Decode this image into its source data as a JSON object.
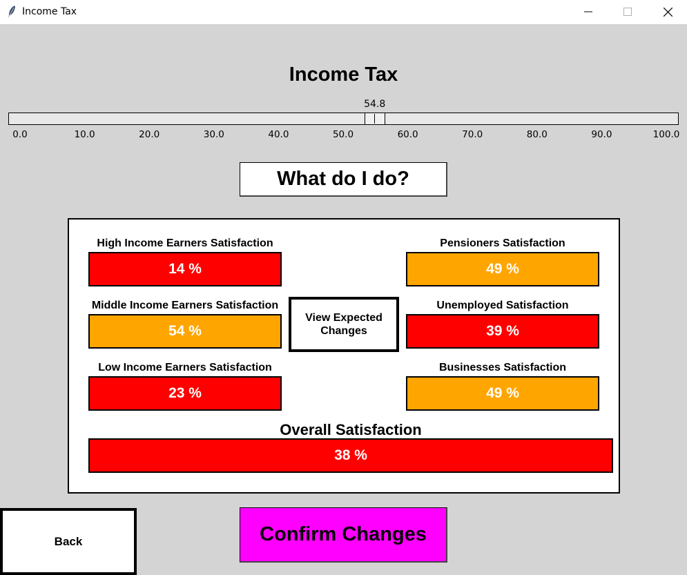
{
  "window": {
    "title": "Income Tax",
    "icon": "feather-icon",
    "controls": [
      "minimize-icon",
      "maximize-icon",
      "close-icon"
    ]
  },
  "heading": "Income Tax",
  "slider": {
    "value": 54.8,
    "value_label": "54.8",
    "min": 0,
    "max": 100,
    "ticks": [
      "0.0",
      "10.0",
      "20.0",
      "30.0",
      "40.0",
      "50.0",
      "60.0",
      "70.0",
      "80.0",
      "90.0",
      "100.0"
    ]
  },
  "help_button": "What do I do?",
  "view_button": "View Expected Changes",
  "satisfaction": {
    "high_income": {
      "label": "High Income Earners Satisfaction",
      "value": "14 %",
      "color": "#ff0000"
    },
    "middle_income": {
      "label": "Middle Income Earners Satisfaction",
      "value": "54 %",
      "color": "#ffa500"
    },
    "low_income": {
      "label": "Low Income Earners Satisfaction",
      "value": "23 %",
      "color": "#ff0000"
    },
    "pensioners": {
      "label": "Pensioners Satisfaction",
      "value": "49 %",
      "color": "#ffa500"
    },
    "unemployed": {
      "label": "Unemployed Satisfaction",
      "value": "39 %",
      "color": "#ff0000"
    },
    "businesses": {
      "label": "Businesses Satisfaction",
      "value": "49 %",
      "color": "#ffa500"
    },
    "overall": {
      "label": "Overall Satisfaction",
      "value": "38 %",
      "color": "#ff0000"
    }
  },
  "back_button": "Back",
  "confirm_button": {
    "label": "Confirm Changes",
    "color": "#ff00ff"
  }
}
